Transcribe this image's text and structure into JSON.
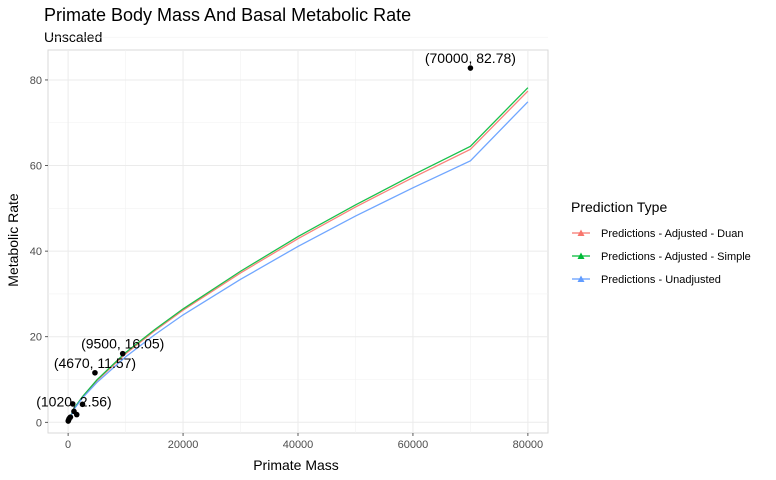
{
  "chart_data": {
    "type": "scatter",
    "title": "Primate Body Mass And Basal Metabolic Rate",
    "subtitle": "Unscaled",
    "xlabel": "Primate Mass",
    "ylabel": "Metabolic Rate",
    "xlim": [
      -3500,
      83500
    ],
    "ylim": [
      -2.5,
      87
    ],
    "x_ticks": [
      0,
      20000,
      40000,
      60000,
      80000
    ],
    "y_ticks": [
      0,
      20,
      40,
      60,
      80
    ],
    "x_tick_labels": [
      "0",
      "20000",
      "40000",
      "60000",
      "80000"
    ],
    "y_tick_labels": [
      "0",
      "20",
      "40",
      "60",
      "80"
    ],
    "grid": true,
    "legend_title": "Prediction Type",
    "legend_position": "right",
    "points": [
      {
        "x": 20,
        "y": 0.3
      },
      {
        "x": 100,
        "y": 0.6
      },
      {
        "x": 200,
        "y": 0.9
      },
      {
        "x": 400,
        "y": 1.2
      },
      {
        "x": 1020,
        "y": 2.56
      },
      {
        "x": 800,
        "y": 4.3
      },
      {
        "x": 1500,
        "y": 1.8
      },
      {
        "x": 2500,
        "y": 4.2
      },
      {
        "x": 4670,
        "y": 11.57
      },
      {
        "x": 9500,
        "y": 16.05
      },
      {
        "x": 70000,
        "y": 82.78
      }
    ],
    "annotations": [
      {
        "x": 1020,
        "y": 2.56,
        "text": "(1020, 2.56)"
      },
      {
        "x": 4670,
        "y": 11.57,
        "text": "(4670, 11.57)"
      },
      {
        "x": 9500,
        "y": 16.05,
        "text": "(9500, 16.05)"
      },
      {
        "x": 70000,
        "y": 82.78,
        "text": "(70000, 82.78)"
      }
    ],
    "series": [
      {
        "name": "Predictions - Adjusted - Duan",
        "color": "#F8766D",
        "x": [
          0,
          1000,
          2500,
          5000,
          10000,
          15000,
          20000,
          30000,
          40000,
          50000,
          60000,
          70000,
          80000
        ],
        "y": [
          0,
          3.1,
          5.9,
          9.7,
          16.0,
          21.3,
          26.2,
          34.9,
          42.9,
          50.3,
          57.2,
          63.8,
          77.4
        ]
      },
      {
        "name": "Predictions - Adjusted - Simple",
        "color": "#00BA38",
        "x": [
          0,
          1000,
          2500,
          5000,
          10000,
          15000,
          20000,
          30000,
          40000,
          50000,
          60000,
          70000,
          80000
        ],
        "y": [
          0,
          3.2,
          6.0,
          9.9,
          16.3,
          21.6,
          26.5,
          35.3,
          43.4,
          50.8,
          57.8,
          64.5,
          78.2
        ]
      },
      {
        "name": "Predictions - Unadjusted",
        "color": "#619CFF",
        "x": [
          0,
          1000,
          2500,
          5000,
          10000,
          15000,
          20000,
          30000,
          40000,
          50000,
          60000,
          70000,
          80000
        ],
        "y": [
          0,
          3.0,
          5.7,
          9.3,
          15.3,
          20.4,
          25.1,
          33.4,
          41.1,
          48.2,
          54.8,
          61.1,
          74.9
        ]
      }
    ]
  }
}
